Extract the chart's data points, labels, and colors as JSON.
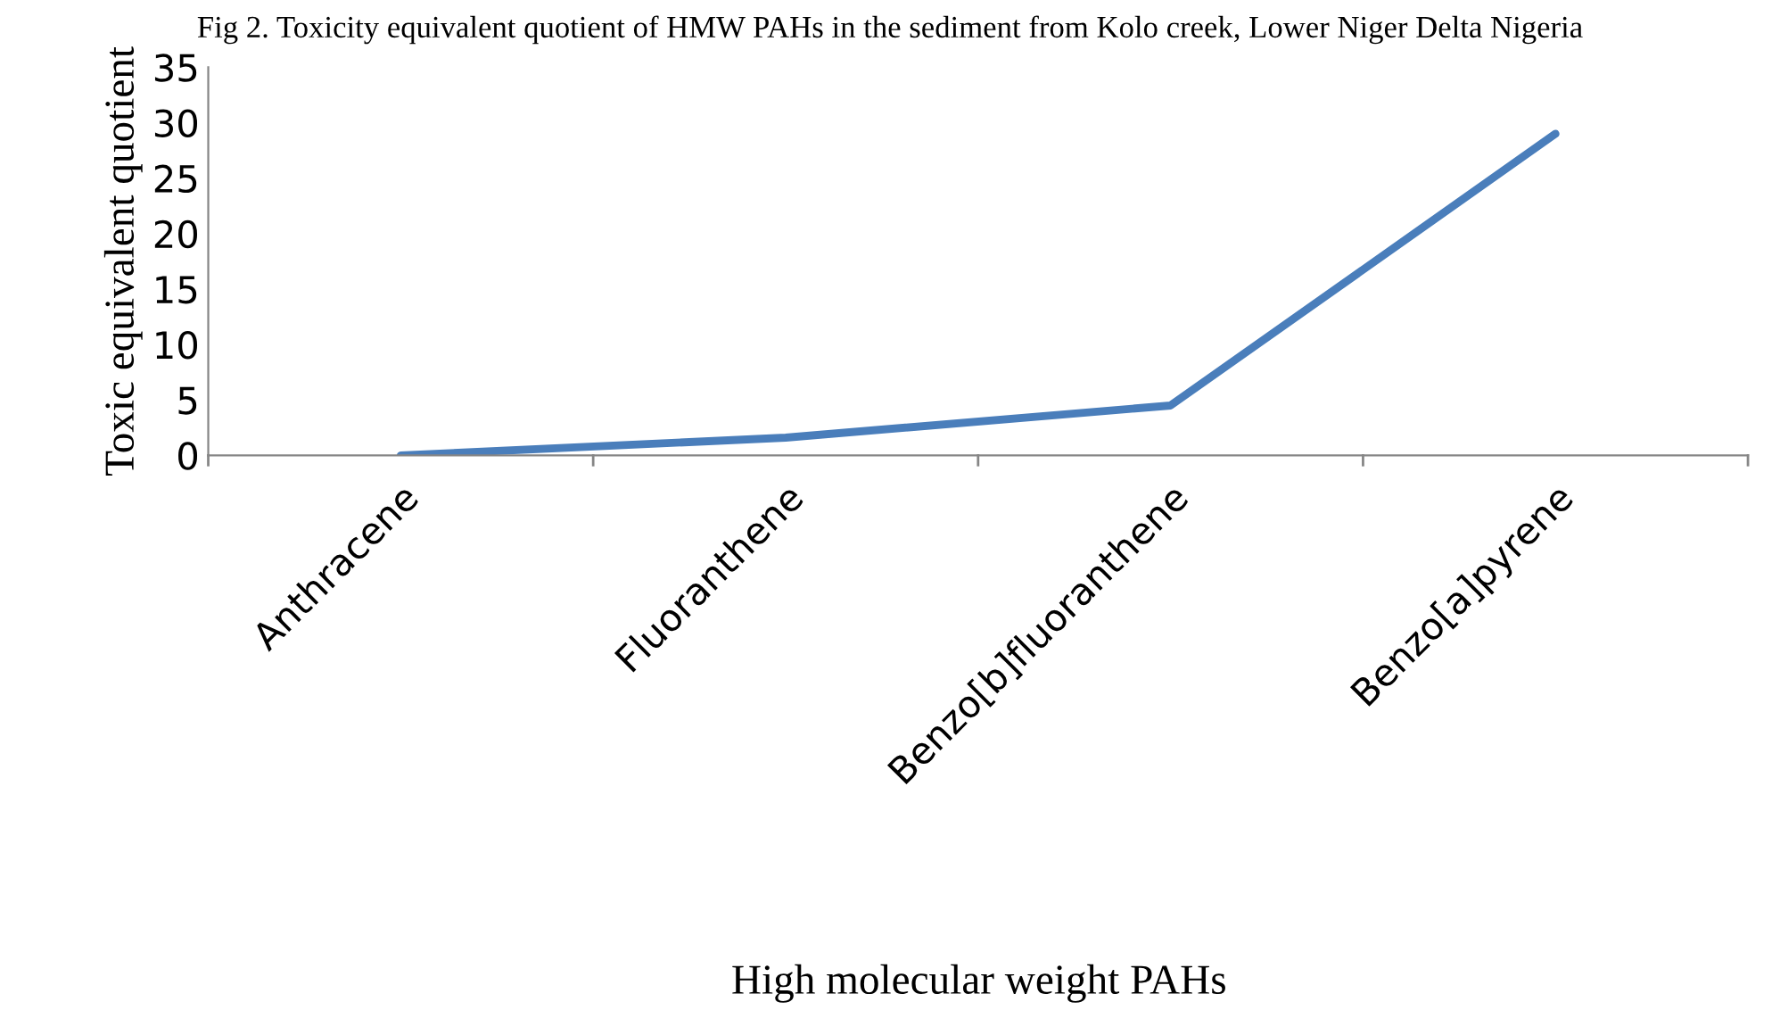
{
  "chart_data": {
    "type": "line",
    "title": "Fig 2. Toxicity equivalent quotient of HMW PAHs in the sediment from Kolo creek, Lower Niger Delta Nigeria",
    "xlabel": "High molecular weight PAHs",
    "ylabel": "Toxic equivalent quotient",
    "categories": [
      "Anthracene",
      "Fluoranthene",
      "Benzo[b]fluoranthene",
      "Benzo[a]pyrene"
    ],
    "series": [
      {
        "color": "#4a7ebb",
        "values": [
          0,
          1.6,
          4.5,
          29
        ]
      }
    ],
    "ylim": [
      0,
      35
    ],
    "yticks": [
      0,
      5,
      10,
      15,
      20,
      25,
      30,
      35
    ],
    "grid": false,
    "legend": false,
    "marker": "none",
    "line_style": "solid"
  }
}
